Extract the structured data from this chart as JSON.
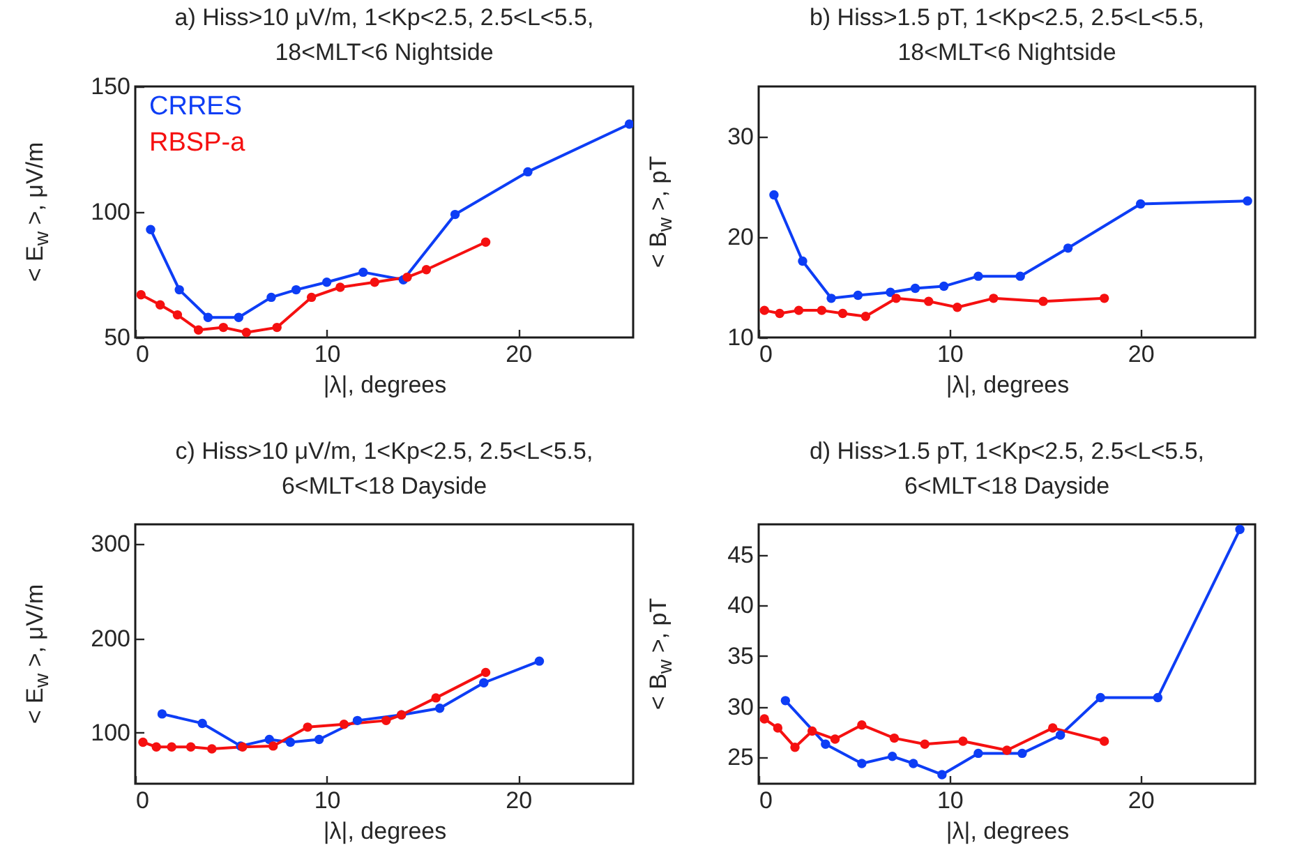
{
  "chart_data": [
    {
      "type": "line",
      "title": "a) Hiss>10 μV/m, 1<Kp<2.5, 2.5<L<5.5,\n18<MLT<6 Nightside",
      "xlabel": "|λ|, degrees",
      "ylabel": "< E$_{w}$ >, μV/m",
      "xlim": [
        0,
        26
      ],
      "ylim": [
        50,
        150
      ],
      "xticks": [
        0,
        10,
        20
      ],
      "yticks": [
        50,
        100,
        150
      ],
      "legend": "top left",
      "marker": "circle",
      "line_style": "solid",
      "series": [
        {
          "name": "CRRES",
          "color": "#0d3df5",
          "x": [
            0.8,
            2.3,
            3.8,
            5.4,
            7.1,
            8.4,
            10.0,
            11.9,
            14.0,
            16.7,
            20.5,
            25.8
          ],
          "values": [
            93,
            69,
            58,
            58,
            66,
            69,
            72,
            76,
            73,
            99,
            116,
            135
          ]
        },
        {
          "name": "RBSP-a",
          "color": "#f51010",
          "x": [
            0.3,
            1.3,
            2.2,
            3.3,
            4.6,
            5.8,
            7.4,
            9.2,
            10.7,
            12.5,
            14.2,
            15.2,
            18.3
          ],
          "values": [
            67,
            63,
            59,
            53,
            54,
            52,
            54,
            66,
            70,
            72,
            74,
            77,
            88
          ]
        }
      ]
    },
    {
      "type": "line",
      "title": "b) Hiss>1.5 pT, 1<Kp<2.5, 2.5<L<5.5,\n18<MLT<6 Nightside",
      "xlabel": "|λ|, degrees",
      "ylabel": "< B$_{w}$ >, pT",
      "xlim": [
        0,
        26
      ],
      "ylim": [
        10,
        35
      ],
      "xticks": [
        0,
        10,
        20
      ],
      "yticks": [
        10,
        20,
        30
      ],
      "marker": "circle",
      "line_style": "solid",
      "series": [
        {
          "color": "#0d3df5",
          "x": [
            0.8,
            2.3,
            3.8,
            5.2,
            6.9,
            8.2,
            9.7,
            11.5,
            13.7,
            16.2,
            20.0,
            25.6
          ],
          "values": [
            24.2,
            17.6,
            13.9,
            14.2,
            14.5,
            14.9,
            15.1,
            16.1,
            16.1,
            18.9,
            23.3,
            23.6
          ]
        },
        {
          "color": "#f51010",
          "x": [
            0.3,
            1.1,
            2.1,
            3.3,
            4.4,
            5.6,
            7.2,
            8.9,
            10.4,
            12.3,
            14.9,
            18.1
          ],
          "values": [
            12.7,
            12.4,
            12.7,
            12.7,
            12.4,
            12.1,
            13.9,
            13.6,
            13.0,
            13.9,
            13.6,
            13.9
          ]
        }
      ]
    },
    {
      "type": "line",
      "title": "c) Hiss>10 μV/m, 1<Kp<2.5, 2.5<L<5.5,\n6<MLT<18 Dayside",
      "xlabel": "|λ|, degrees",
      "ylabel": "< E$_{w}$ >, μV/m",
      "xlim": [
        0,
        26
      ],
      "ylim": [
        46,
        321
      ],
      "xticks": [
        0,
        10,
        20
      ],
      "yticks": [
        100,
        200,
        300
      ],
      "marker": "circle",
      "line_style": "solid",
      "series": [
        {
          "color": "#0d3df5",
          "x": [
            1.4,
            3.5,
            5.5,
            7.0,
            8.1,
            9.6,
            11.6,
            13.9,
            15.9,
            18.2,
            21.1
          ],
          "values": [
            120,
            110,
            86,
            93,
            90,
            93,
            113,
            119,
            126,
            153,
            176
          ]
        },
        {
          "color": "#f51010",
          "x": [
            0.4,
            1.1,
            1.9,
            2.9,
            4.0,
            5.6,
            7.2,
            9.0,
            10.9,
            13.1,
            13.9,
            15.7,
            18.3
          ],
          "values": [
            90,
            85,
            85,
            85,
            83,
            85,
            86,
            106,
            109,
            113,
            119,
            137,
            164
          ]
        }
      ]
    },
    {
      "type": "line",
      "title": "d) Hiss>1.5 pT, 1<Kp<2.5, 2.5<L<5.5,\n6<MLT<18 Dayside",
      "xlabel": "|λ|, degrees",
      "ylabel": "< B$_{w}$ >, pT",
      "xlim": [
        0,
        26
      ],
      "ylim": [
        22.4,
        48
      ],
      "xticks": [
        0,
        10,
        20
      ],
      "yticks": [
        25,
        30,
        35,
        40,
        45
      ],
      "marker": "circle",
      "line_style": "solid",
      "series": [
        {
          "color": "#0d3df5",
          "x": [
            1.4,
            3.5,
            5.4,
            7.0,
            8.1,
            9.6,
            11.5,
            13.8,
            15.8,
            17.9,
            20.9,
            25.2
          ],
          "values": [
            30.6,
            26.3,
            24.4,
            25.1,
            24.4,
            23.3,
            25.4,
            25.4,
            27.2,
            30.9,
            30.9,
            47.5
          ]
        },
        {
          "color": "#f51010",
          "x": [
            0.3,
            1.0,
            1.9,
            2.8,
            4.0,
            5.4,
            7.1,
            8.7,
            10.7,
            13.0,
            15.4,
            18.1
          ],
          "values": [
            28.8,
            27.9,
            26.0,
            27.6,
            26.8,
            28.2,
            26.9,
            26.3,
            26.6,
            25.7,
            27.9,
            26.6
          ]
        }
      ]
    }
  ]
}
